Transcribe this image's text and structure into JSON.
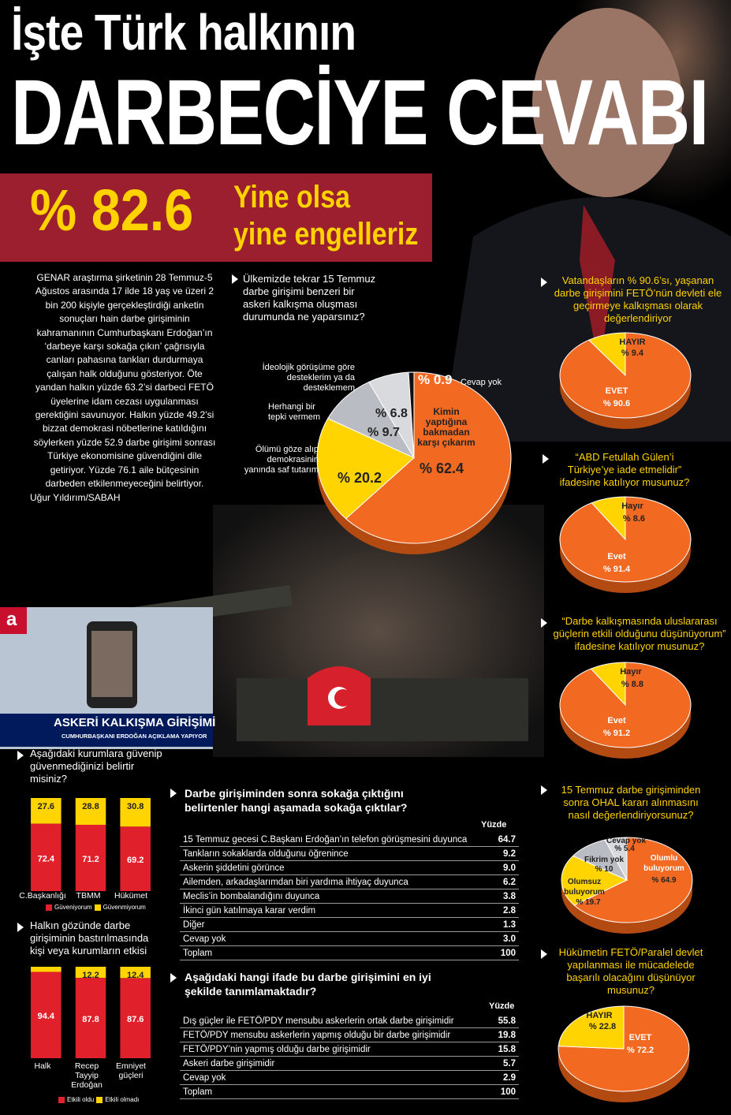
{
  "title_line1": "İşte Türk halkının",
  "title_line2": "DARBECİYE CEVABI",
  "banner": {
    "percent": "% 82.6",
    "text_line1": "Yine olsa",
    "text_line2": "yine engelleriz"
  },
  "intro": "GENAR araştırma şirketinin 28 Temmuz-5 Ağustos arasında 17 ilde 18 yaş ve üzeri 2 bin 200 kişiyle gerçekleştirdiği anketin sonuçları hain darbe girişiminin kahramanının Cumhurbaşkanı Erdoğan’ın ‘darbeye karşı sokağa çıkın’ çağrısıyla canları pahasına tankları durdurmaya çalışan halk olduğunu gösteriyor. Öte yandan halkın yüzde 63.2’si darbeci FETÖ üyelerine idam cezası uygulanması gerektiğini savunuyor. Halkın yüzde 49.2’si bizzat demokrasi nöbetlerine katıldığını söylerken yüzde 52.9 darbe girişimi sonrası Türkiye ekonomisine güvendiğini dile getiriyor. Yüzde 76.1 aile bütçesinin darbeden etkilenmeyeceğini belirtiyor.",
  "byline": "Uğur Yıldırım/SABAH",
  "tv": {
    "logo": "a",
    "headline": "ASKERİ KALKIŞMA GİRİŞİMİ",
    "subline": "CUMHURBAŞKANI ERDOĞAN AÇIKLAMA YAPIYOR"
  },
  "colors": {
    "orange": "#f26a21",
    "yellow": "#ffd400",
    "red": "#e0202a",
    "grey": "#b9bcc2",
    "banner": "#9b1f2e",
    "navy": "#001a5c"
  },
  "chart_data": [
    {
      "id": "main_pie",
      "type": "pie",
      "question": "Ülkemizde tekrar 15 Temmuz darbe girişimi benzeri bir askeri kalkışma oluşması durumunda ne yaparsınız?",
      "slices": [
        {
          "label": "Kimin yaptığına bakmadan karşı çıkarım",
          "value": 62.4,
          "value_label": "% 62.4",
          "color": "#f26a21"
        },
        {
          "label": "Ölümü göze alıp demokrasinin yanında saf tutarım",
          "value": 20.2,
          "value_label": "% 20.2",
          "color": "#ffd400"
        },
        {
          "label": "Herhangi bir tepki vermem",
          "value": 9.7,
          "value_label": "% 9.7",
          "color": "#b9bcc2"
        },
        {
          "label": "İdeolojik görüşüme göre desteklerim ya da desteklemem",
          "value": 6.8,
          "value_label": "% 6.8",
          "color": "#d8dade"
        },
        {
          "label": "Cevap yok",
          "value": 0.9,
          "value_label": "% 0.9",
          "color": "#111111"
        }
      ]
    },
    {
      "id": "pie_feto_devlet",
      "type": "pie",
      "question": "Vatandaşların % 90.6’sı, yaşanan darbe girişimini FETÖ’nün devleti ele geçirmeye kalkışması olarak değerlendiriyor",
      "slices": [
        {
          "label": "EVET",
          "value": 90.6,
          "value_label": "% 90.6",
          "color": "#f26a21"
        },
        {
          "label": "HAYIR",
          "value": 9.4,
          "value_label": "% 9.4",
          "color": "#ffd400"
        }
      ]
    },
    {
      "id": "pie_iade",
      "type": "pie",
      "question": "“ABD Fetullah Gülen’i Türkiye’ye iade etmelidir” ifadesine katılıyor musunuz?",
      "slices": [
        {
          "label": "Evet",
          "value": 91.4,
          "value_label": "% 91.4",
          "color": "#f26a21"
        },
        {
          "label": "Hayır",
          "value": 8.6,
          "value_label": "% 8.6",
          "color": "#ffd400"
        }
      ]
    },
    {
      "id": "pie_uluslararasi",
      "type": "pie",
      "question": "“Darbe kalkışmasında uluslararası güçlerin etkili olduğunu düşünüyorum” ifadesine katılıyor musunuz?",
      "slices": [
        {
          "label": "Evet",
          "value": 91.2,
          "value_label": "% 91.2",
          "color": "#f26a21"
        },
        {
          "label": "Hayır",
          "value": 8.8,
          "value_label": "% 8.8",
          "color": "#ffd400"
        }
      ]
    },
    {
      "id": "pie_ohal",
      "type": "pie",
      "question": "15 Temmuz darbe girişiminden sonra OHAL kararı alınmasını nasıl değerlendiriyorsunuz?",
      "slices": [
        {
          "label": "Olumlu buluyorum",
          "value": 64.9,
          "value_label": "% 64.9",
          "color": "#f26a21"
        },
        {
          "label": "Olumsuz buluyorum",
          "value": 19.7,
          "value_label": "% 19.7",
          "color": "#ffd400"
        },
        {
          "label": "Fikrim yok",
          "value": 10,
          "value_label": "% 10",
          "color": "#b9bcc2"
        },
        {
          "label": "Cevap yok",
          "value": 5.4,
          "value_label": "% 5.4",
          "color": "#d8dade"
        }
      ]
    },
    {
      "id": "pie_hukumet",
      "type": "pie",
      "question": "Hükümetin FETÖ/Paralel devlet yapılanması ile mücadelede başarılı olacağını düşünüyor musunuz?",
      "slices": [
        {
          "label": "EVET",
          "value": 72.2,
          "value_label": "% 72.2",
          "color": "#f26a21"
        },
        {
          "label": "HAYIR",
          "value": 22.8,
          "value_label": "% 22.8",
          "color": "#ffd400"
        }
      ]
    },
    {
      "id": "bar_guven",
      "type": "bar",
      "question": "Aşağıdaki kurumlara güvenip güvenmediğinizi belirtir misiniz?",
      "categories": [
        "C.Başkanlığı",
        "TBMM",
        "Hükümet"
      ],
      "series": [
        {
          "name": "Güveniyorum",
          "values": [
            72.4,
            71.2,
            69.2
          ],
          "color": "#e0202a"
        },
        {
          "name": "Güvenmiyorum",
          "values": [
            27.6,
            28.8,
            30.8
          ],
          "color": "#ffd400"
        }
      ]
    },
    {
      "id": "bar_etki",
      "type": "bar",
      "question": "Halkın gözünde darbe girişiminin bastırılmasında kişi veya kurumların etkisi",
      "categories": [
        "Halk",
        "Recep Tayyip Erdoğan",
        "Emniyet güçleri"
      ],
      "series": [
        {
          "name": "Etkili oldu",
          "values": [
            94.4,
            87.8,
            87.6
          ],
          "color": "#e0202a"
        },
        {
          "name": "Etkili olmadı",
          "values": [
            5.6,
            12.2,
            12.4
          ],
          "color": "#ffd400"
        }
      ]
    },
    {
      "id": "table_sokak",
      "type": "table",
      "question": "Darbe girişiminden sonra sokağa çıktığını belirtenler hangi aşamada sokağa çıktılar?",
      "header": "Yüzde",
      "rows": [
        {
          "label": "15 Temmuz gecesi C.Başkanı Erdoğan’ın telefon görüşmesini duyunca",
          "value": "64.7"
        },
        {
          "label": "Tankların sokaklarda olduğunu öğrenince",
          "value": "9.2"
        },
        {
          "label": "Askerin şiddetini görünce",
          "value": "9.0"
        },
        {
          "label": "Ailemden, arkadaşlarımdan biri yardıma ihtiyaç duyunca",
          "value": "6.2"
        },
        {
          "label": "Meclis’in bombalandığını duyunca",
          "value": "3.8"
        },
        {
          "label": "İkinci gün katılmaya karar verdim",
          "value": "2.8"
        },
        {
          "label": "Diğer",
          "value": "1.3"
        },
        {
          "label": "Cevap yok",
          "value": "3.0"
        },
        {
          "label": "Toplam",
          "value": "100"
        }
      ]
    },
    {
      "id": "table_tanim",
      "type": "table",
      "question": "Aşağıdaki hangi ifade bu darbe girişimini en iyi şekilde tanımlamaktadır?",
      "header": "Yüzde",
      "rows": [
        {
          "label": "Dış güçler ile FETÖ/PDY mensubu askerlerin ortak darbe girişimidir",
          "value": "55.8"
        },
        {
          "label": "FETÖ/PDY mensubu askerlerin yapmış olduğu bir darbe girişimidir",
          "value": "19.8"
        },
        {
          "label": "FETÖ/PDY’nin yapmış olduğu darbe girişimidir",
          "value": "15.8"
        },
        {
          "label": "Askeri darbe girişimidir",
          "value": "5.7"
        },
        {
          "label": "Cevap yok",
          "value": "2.9"
        },
        {
          "label": "Toplam",
          "value": "100"
        }
      ]
    }
  ]
}
